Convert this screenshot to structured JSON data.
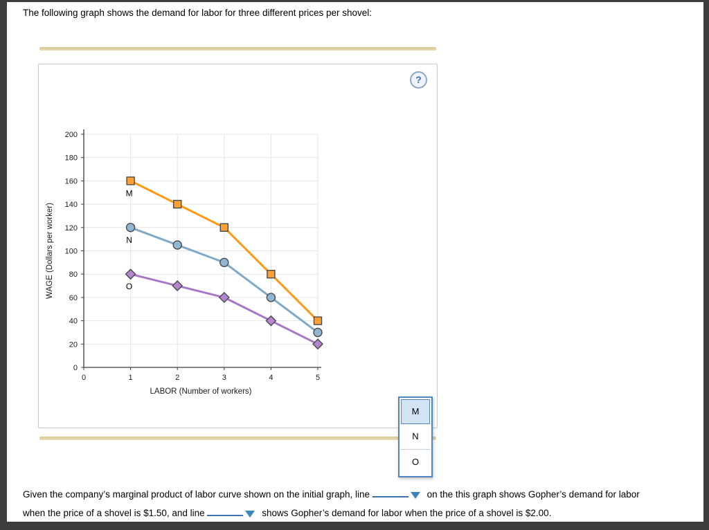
{
  "page": {
    "intro": "The following graph shows the demand for labor for three different prices per shovel:"
  },
  "panel": {
    "help_icon": "?"
  },
  "chart_data": {
    "type": "line",
    "title": "",
    "xlabel": "LABOR (Number of workers)",
    "ylabel": "WAGE (Dollars per worker)",
    "xlim": [
      0,
      5
    ],
    "ylim": [
      0,
      200
    ],
    "xticks": [
      0,
      1,
      2,
      3,
      4,
      5
    ],
    "ytick_step": 20,
    "grid": true,
    "legend": "none",
    "series": [
      {
        "name": "M",
        "marker": "square",
        "line_color": "#FF9914",
        "marker_fill": "#FFA033",
        "x": [
          1,
          2,
          3,
          4,
          5
        ],
        "y": [
          160,
          140,
          120,
          80,
          40
        ]
      },
      {
        "name": "N",
        "marker": "circle",
        "line_color": "#7FA8C9",
        "marker_fill": "#8FB7D4",
        "x": [
          1,
          2,
          3,
          4,
          5
        ],
        "y": [
          120,
          105,
          90,
          60,
          30
        ]
      },
      {
        "name": "O",
        "marker": "diamond",
        "line_color": "#A877C8",
        "marker_fill": "#B285CF",
        "x": [
          1,
          2,
          3,
          4,
          5
        ],
        "y": [
          80,
          70,
          60,
          40,
          20
        ]
      }
    ]
  },
  "dropdown": {
    "options": [
      "M",
      "N",
      "O"
    ],
    "selected": "M"
  },
  "question": {
    "line1_pre": "Given the company’s marginal product of labor curve shown on the initial graph, line",
    "line1_post": "on the this graph shows Gopher’s demand for labor",
    "line2_pre": "when the price of a shovel is $1.50, and line",
    "line2_post": "shows Gopher’s demand for labor when the price of a shovel is $2.00."
  }
}
